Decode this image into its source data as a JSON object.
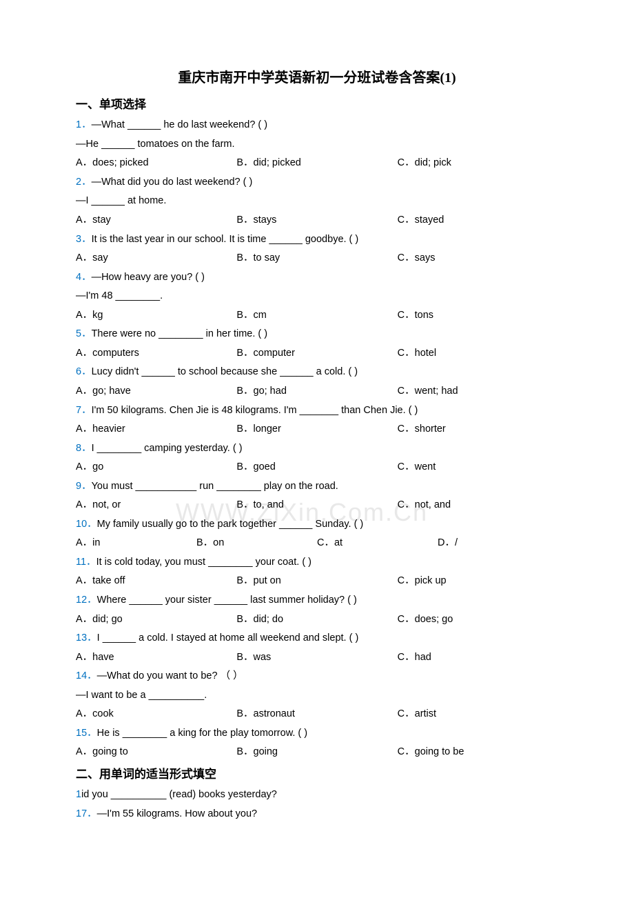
{
  "title": "重庆市南开中学英语新初一分班试卷含答案(1)",
  "section1": "一、单项选择",
  "section2": "二、用单词的适当形式填空",
  "watermark": "WWW.ZiXin.Com.Cn",
  "q1": {
    "num": "1．",
    "text": "—What ______ he do last weekend? (   )",
    "line2": "—He ______ tomatoes on the farm.",
    "optA": "A．does; picked",
    "optB": "B．did; picked",
    "optC": "C．did; pick"
  },
  "q2": {
    "num": "2．",
    "text": "—What did you do last weekend? (   )",
    "line2": "—I ______ at home.",
    "optA": "A．stay",
    "optB": "B．stays",
    "optC": "C．stayed"
  },
  "q3": {
    "num": "3．",
    "text": "It is the last year in our school. It is time ______ goodbye. (   )",
    "optA": "A．say",
    "optB": "B．to say",
    "optC": "C．says"
  },
  "q4": {
    "num": "4．",
    "text": "—How heavy are you? (    )",
    "line2": "—I'm 48 ________.",
    "optA": "A．kg",
    "optB": "B．cm",
    "optC": "C．tons"
  },
  "q5": {
    "num": "5．",
    "text": "There were no ________ in her time. (   )",
    "optA": "A．computers",
    "optB": "B．computer",
    "optC": "C．hotel"
  },
  "q6": {
    "num": "6．",
    "text": "Lucy didn't ______ to school because she ______ a cold. (   )",
    "optA": "A．go; have",
    "optB": "B．go; had",
    "optC": "C．went; had"
  },
  "q7": {
    "num": "7．",
    "text": "I'm 50 kilograms. Chen Jie is 48 kilograms. I'm _______ than Chen Jie. (   )",
    "optA": "A．heavier",
    "optB": "B．longer",
    "optC": "C．shorter"
  },
  "q8": {
    "num": "8．",
    "text": "I ________ camping yesterday. (     )",
    "optA": "A．go",
    "optB": "B．goed",
    "optC": "C．went"
  },
  "q9": {
    "num": "9．",
    "text": "You must ___________ run ________ play on the road.",
    "optA": "A．not, or",
    "optB": "B．to, and",
    "optC": "C．not, and"
  },
  "q10": {
    "num": "10．",
    "text": "My family usually go to the park together ______ Sunday. (   )",
    "optA": "A．in",
    "optB": "B．on",
    "optC": "C．at",
    "optD": "D．/"
  },
  "q11": {
    "num": "11．",
    "text": "It is cold today, you must ________ your coat. (   )",
    "optA": "A．take off",
    "optB": "B．put on",
    "optC": "C．pick up"
  },
  "q12": {
    "num": "12．",
    "text": "Where ______ your sister ______ last summer holiday? (   )",
    "optA": "A．did; go",
    "optB": "B．did; do",
    "optC": "C．does; go"
  },
  "q13": {
    "num": "13．",
    "text": "I ______ a cold. I stayed at home all weekend and slept. (   )",
    "optA": "A．have",
    "optB": "B．was",
    "optC": "C．had"
  },
  "q14": {
    "num": "14．",
    "text": "—What do you want to be?  （    ）",
    "line2": "—I want to be a __________.",
    "optA": "A．cook",
    "optB": "B．astronaut",
    "optC": "C．artist"
  },
  "q15": {
    "num": "15．",
    "text": "He is ________ a king for the play tomorrow. (     )",
    "optA": "A．going to",
    "optB": "B．going",
    "optC": "C．going to be"
  },
  "q16": {
    "num": "1",
    "text": "id you __________ (read) books yesterday?"
  },
  "q17": {
    "num": "17．",
    "text": "—I'm 55 kilograms. How about you?"
  }
}
